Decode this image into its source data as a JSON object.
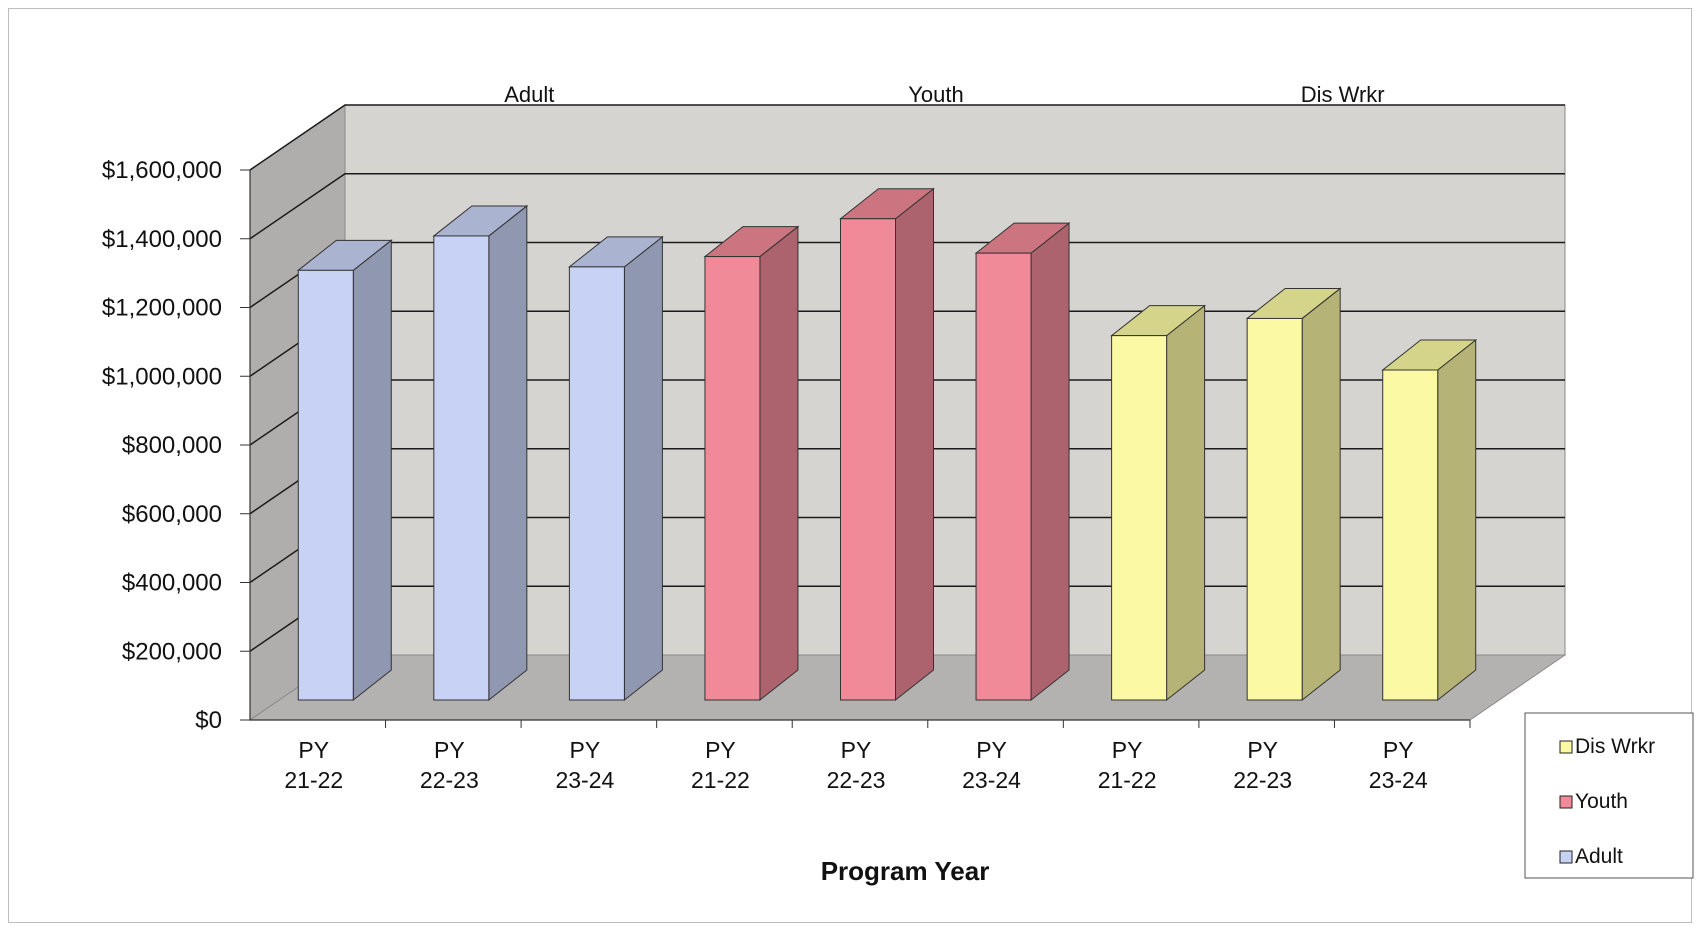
{
  "chart_data": {
    "type": "bar",
    "title": "",
    "xlabel": "Program Year",
    "ylabel": "",
    "ylim": [
      0,
      1600000
    ],
    "y_ticks": [
      0,
      200000,
      400000,
      600000,
      800000,
      1000000,
      1200000,
      1400000,
      1600000
    ],
    "y_tick_labels": [
      "$0",
      "$200,000",
      "$400,000",
      "$600,000",
      "$800,000",
      "$1,000,000",
      "$1,200,000",
      "$1,400,000",
      "$1,600,000"
    ],
    "grid": true,
    "three_d": true,
    "legend_position": "bottom-right",
    "legend_order": [
      "Dis Wrkr",
      "Youth",
      "Adult"
    ],
    "series": [
      {
        "name": "Adult",
        "group_label": "Adult",
        "color": "#c8d2f5",
        "categories": [
          "PY\n21-22",
          "PY\n22-23",
          "PY\n23-24"
        ],
        "category_lines": [
          [
            "PY",
            "21-22"
          ],
          [
            "PY",
            "22-23"
          ],
          [
            "PY",
            "23-24"
          ]
        ],
        "values": [
          1250000,
          1350000,
          1260000
        ]
      },
      {
        "name": "Youth",
        "group_label": "Youth",
        "color": "#f08a98",
        "categories": [
          "PY\n21-22",
          "PY\n22-23",
          "PY\n23-24"
        ],
        "category_lines": [
          [
            "PY",
            "21-22"
          ],
          [
            "PY",
            "22-23"
          ],
          [
            "PY",
            "23-24"
          ]
        ],
        "values": [
          1290000,
          1400000,
          1300000
        ]
      },
      {
        "name": "Dis Wrkr",
        "group_label": "Dis Wrkr",
        "color": "#fbf9a4",
        "categories": [
          "PY\n21-22",
          "PY\n22-23",
          "PY\n23-24"
        ],
        "category_lines": [
          [
            "PY",
            "21-22"
          ],
          [
            "PY",
            "22-23"
          ],
          [
            "PY",
            "23-24"
          ]
        ],
        "values": [
          1060000,
          1110000,
          960000
        ]
      }
    ]
  }
}
